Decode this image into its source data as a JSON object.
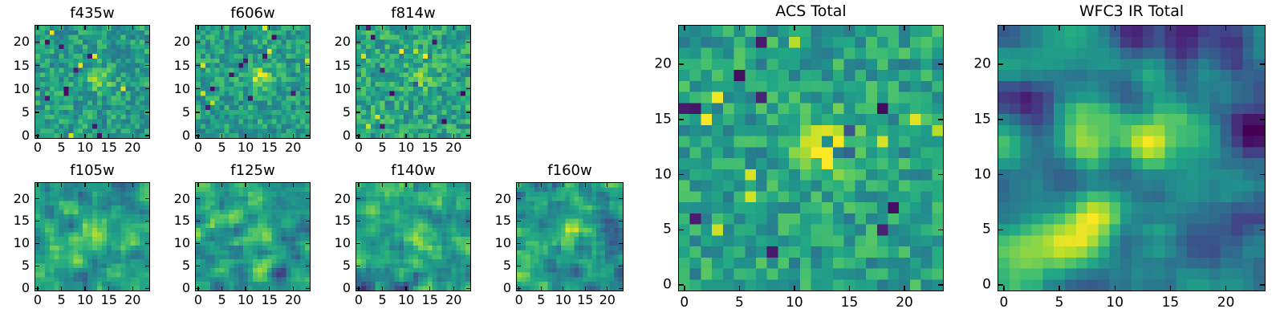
{
  "figure": {
    "background": "#ffffff",
    "colormap": "viridis",
    "colormap_stops": [
      [
        0.0,
        "#440154"
      ],
      [
        0.1,
        "#482475"
      ],
      [
        0.2,
        "#414487"
      ],
      [
        0.3,
        "#355f8d"
      ],
      [
        0.4,
        "#2a788e"
      ],
      [
        0.5,
        "#21918c"
      ],
      [
        0.6,
        "#22a884"
      ],
      [
        0.7,
        "#44bf70"
      ],
      [
        0.8,
        "#7ad151"
      ],
      [
        0.9,
        "#bddf26"
      ],
      [
        1.0,
        "#fde725"
      ]
    ],
    "tick_color": "#000000",
    "frame_color": "#000000",
    "text_color": "#000000"
  },
  "chart_data": [
    {
      "type": "heatmap",
      "title": "f435w",
      "grid": [
        24,
        24
      ],
      "xlim": [
        -0.5,
        23.5
      ],
      "ylim": [
        -0.5,
        23.5
      ],
      "xticks": [
        0,
        5,
        10,
        15,
        20
      ],
      "yticks": [
        0,
        5,
        10,
        15,
        20
      ],
      "colormap": "viridis",
      "origin": "lower",
      "source": {
        "x": 13,
        "y": 12,
        "sx": 1.7,
        "sy": 1.4,
        "amp": 0.3
      },
      "extra_blobs": [],
      "noise": {
        "seed": 11,
        "base": 0.56,
        "amplitude": 0.17,
        "smooth": 0,
        "dark_spots": 9,
        "bright_spots": 5
      }
    },
    {
      "type": "heatmap",
      "title": "f606w",
      "grid": [
        24,
        24
      ],
      "xlim": [
        -0.5,
        23.5
      ],
      "ylim": [
        -0.5,
        23.5
      ],
      "xticks": [
        0,
        5,
        10,
        15,
        20
      ],
      "yticks": [
        0,
        5,
        10,
        15,
        20
      ],
      "colormap": "viridis",
      "origin": "lower",
      "source": {
        "x": 13,
        "y": 12.5,
        "sx": 1.8,
        "sy": 1.6,
        "amp": 0.34
      },
      "extra_blobs": [],
      "noise": {
        "seed": 22,
        "base": 0.56,
        "amplitude": 0.17,
        "smooth": 0,
        "dark_spots": 9,
        "bright_spots": 6
      }
    },
    {
      "type": "heatmap",
      "title": "f814w",
      "grid": [
        24,
        24
      ],
      "xlim": [
        -0.5,
        23.5
      ],
      "ylim": [
        -0.5,
        23.5
      ],
      "xticks": [
        0,
        5,
        10,
        15,
        20
      ],
      "yticks": [
        0,
        5,
        10,
        15,
        20
      ],
      "colormap": "viridis",
      "origin": "lower",
      "source": {
        "x": 12.5,
        "y": 12,
        "sx": 1.8,
        "sy": 1.5,
        "amp": 0.22
      },
      "extra_blobs": [],
      "noise": {
        "seed": 33,
        "base": 0.58,
        "amplitude": 0.18,
        "smooth": 0,
        "dark_spots": 10,
        "bright_spots": 6
      }
    },
    {
      "type": "heatmap",
      "title": "f105w",
      "grid": [
        24,
        24
      ],
      "xlim": [
        -0.5,
        23.5
      ],
      "ylim": [
        -0.5,
        23.5
      ],
      "xticks": [
        0,
        5,
        10,
        15,
        20
      ],
      "yticks": [
        0,
        5,
        10,
        15,
        20
      ],
      "colormap": "viridis",
      "origin": "lower",
      "source": {
        "x": 13,
        "y": 12,
        "sx": 1.9,
        "sy": 1.7,
        "amp": 0.26
      },
      "extra_blobs": [
        {
          "x": 8,
          "y": 10,
          "sx": 4,
          "sy": 3,
          "amp": 0.12
        }
      ],
      "noise": {
        "seed": 44,
        "base": 0.55,
        "amplitude": 0.2,
        "smooth": 1,
        "dark_spots": 7,
        "bright_spots": 5
      }
    },
    {
      "type": "heatmap",
      "title": "f125w",
      "grid": [
        24,
        24
      ],
      "xlim": [
        -0.5,
        23.5
      ],
      "ylim": [
        -0.5,
        23.5
      ],
      "xticks": [
        0,
        5,
        10,
        15,
        20
      ],
      "yticks": [
        0,
        5,
        10,
        15,
        20
      ],
      "colormap": "viridis",
      "origin": "lower",
      "source": {
        "x": 13,
        "y": 12,
        "sx": 2.0,
        "sy": 1.8,
        "amp": 0.24
      },
      "extra_blobs": [
        {
          "x": 3,
          "y": 18,
          "sx": 2,
          "sy": 2,
          "amp": 0.15
        }
      ],
      "noise": {
        "seed": 55,
        "base": 0.55,
        "amplitude": 0.21,
        "smooth": 1,
        "dark_spots": 8,
        "bright_spots": 6
      }
    },
    {
      "type": "heatmap",
      "title": "f140w",
      "grid": [
        24,
        24
      ],
      "xlim": [
        -0.5,
        23.5
      ],
      "ylim": [
        -0.5,
        23.5
      ],
      "xticks": [
        0,
        5,
        10,
        15,
        20
      ],
      "yticks": [
        0,
        5,
        10,
        15,
        20
      ],
      "colormap": "viridis",
      "origin": "lower",
      "source": {
        "x": 12.5,
        "y": 12.5,
        "sx": 2.0,
        "sy": 1.8,
        "amp": 0.26
      },
      "extra_blobs": [
        {
          "x": 3,
          "y": 8,
          "sx": 3,
          "sy": 3,
          "amp": 0.12
        }
      ],
      "noise": {
        "seed": 66,
        "base": 0.57,
        "amplitude": 0.21,
        "smooth": 1,
        "dark_spots": 8,
        "bright_spots": 6
      }
    },
    {
      "type": "heatmap",
      "title": "f160w",
      "grid": [
        24,
        24
      ],
      "xlim": [
        -0.5,
        23.5
      ],
      "ylim": [
        -0.5,
        23.5
      ],
      "xticks": [
        0,
        5,
        10,
        15,
        20
      ],
      "yticks": [
        0,
        5,
        10,
        15,
        20
      ],
      "colormap": "viridis",
      "origin": "lower",
      "source": {
        "x": 12,
        "y": 12.5,
        "sx": 1.9,
        "sy": 1.7,
        "amp": 0.26
      },
      "extra_blobs": [
        {
          "x": 1.5,
          "y": 3.5,
          "sx": 2.8,
          "sy": 3.2,
          "amp": 0.3
        },
        {
          "x": 21.5,
          "y": 13.5,
          "sx": 2.0,
          "sy": 2.0,
          "amp": -0.38
        },
        {
          "x": 22.5,
          "y": 4.5,
          "sx": 1.8,
          "sy": 1.8,
          "amp": -0.25
        }
      ],
      "noise": {
        "seed": 77,
        "base": 0.54,
        "amplitude": 0.22,
        "smooth": 1,
        "dark_spots": 8,
        "bright_spots": 5
      }
    },
    {
      "type": "heatmap",
      "title": "ACS Total",
      "grid": [
        24,
        24
      ],
      "xlim": [
        -0.5,
        23.5
      ],
      "ylim": [
        -0.5,
        23.5
      ],
      "xticks": [
        0,
        5,
        10,
        15,
        20
      ],
      "yticks": [
        0,
        5,
        10,
        15,
        20
      ],
      "colormap": "viridis",
      "origin": "lower",
      "source": {
        "x": 13,
        "y": 12.5,
        "sx": 2.1,
        "sy": 1.8,
        "amp": 0.42
      },
      "extra_blobs": [],
      "noise": {
        "seed": 88,
        "base": 0.57,
        "amplitude": 0.17,
        "smooth": 0,
        "dark_spots": 14,
        "bright_spots": 10
      }
    },
    {
      "type": "heatmap",
      "title": "WFC3 IR Total",
      "grid": [
        24,
        24
      ],
      "xlim": [
        -0.5,
        23.5
      ],
      "ylim": [
        -0.5,
        23.5
      ],
      "xticks": [
        0,
        5,
        10,
        15,
        20
      ],
      "yticks": [
        0,
        5,
        10,
        15,
        20
      ],
      "colormap": "viridis",
      "origin": "lower",
      "source": {
        "x": 13,
        "y": 12.5,
        "sx": 1.8,
        "sy": 1.7,
        "amp": 0.58
      },
      "extra_blobs": [
        {
          "x": 4,
          "y": 4.5,
          "sx": 2.9,
          "sy": 2.6,
          "amp": 0.34
        },
        {
          "x": 22.5,
          "y": 5,
          "sx": 2.3,
          "sy": 2.3,
          "amp": -0.34
        },
        {
          "x": 21.5,
          "y": 14,
          "sx": 1.6,
          "sy": 1.6,
          "amp": -0.3
        },
        {
          "x": 22,
          "y": 22.5,
          "sx": 1.8,
          "sy": 1.8,
          "amp": -0.28
        },
        {
          "x": 11.5,
          "y": 22.5,
          "sx": 1.2,
          "sy": 1.2,
          "amp": -0.22
        }
      ],
      "noise": {
        "seed": 99,
        "base": 0.46,
        "amplitude": 0.26,
        "smooth": 2,
        "dark_spots": 3,
        "bright_spots": 0
      }
    }
  ]
}
